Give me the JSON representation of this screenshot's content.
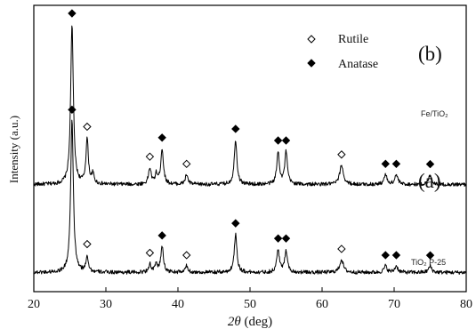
{
  "chart_data": {
    "type": "line",
    "xlabel": "2θ (deg)",
    "xlabel_parts": {
      "theta": "2θ",
      "unit": " (deg)"
    },
    "ylabel": "Intensity (a.u.)",
    "xlim": [
      20,
      80
    ],
    "xticks": [
      20,
      30,
      40,
      50,
      60,
      70,
      80
    ],
    "xtick_labels": [
      "20",
      "30",
      "40",
      "50",
      "60",
      "70",
      "80"
    ],
    "grid": false,
    "legend": {
      "placement": "top-center",
      "entries": [
        {
          "label": "Rutile",
          "marker": "open-diamond"
        },
        {
          "label": "Anatase",
          "marker": "filled-diamond"
        }
      ]
    },
    "series": [
      {
        "name": "Fe/TiO₂",
        "panel": "(b)",
        "baseline": 0.55,
        "noise": 0.012,
        "peaks": [
          {
            "x": 25.3,
            "h": 1.0,
            "w": 0.22,
            "phase": "anatase"
          },
          {
            "x": 27.4,
            "h": 0.28,
            "w": 0.2,
            "phase": "rutile"
          },
          {
            "x": 28.2,
            "h": 0.06,
            "w": 0.2,
            "phase": ""
          },
          {
            "x": 36.1,
            "h": 0.1,
            "w": 0.22,
            "phase": "rutile"
          },
          {
            "x": 37.0,
            "h": 0.06,
            "w": 0.2,
            "phase": ""
          },
          {
            "x": 37.8,
            "h": 0.22,
            "w": 0.22,
            "phase": "anatase"
          },
          {
            "x": 41.2,
            "h": 0.06,
            "w": 0.22,
            "phase": "rutile"
          },
          {
            "x": 48.0,
            "h": 0.28,
            "w": 0.22,
            "phase": "anatase"
          },
          {
            "x": 53.9,
            "h": 0.2,
            "w": 0.22,
            "phase": "anatase"
          },
          {
            "x": 55.0,
            "h": 0.2,
            "w": 0.22,
            "phase": "anatase"
          },
          {
            "x": 62.7,
            "h": 0.12,
            "w": 0.3,
            "phase": "rutile"
          },
          {
            "x": 68.8,
            "h": 0.06,
            "w": 0.25,
            "phase": "anatase"
          },
          {
            "x": 70.3,
            "h": 0.06,
            "w": 0.25,
            "phase": "anatase"
          },
          {
            "x": 75.0,
            "h": 0.06,
            "w": 0.25,
            "phase": "anatase"
          }
        ]
      },
      {
        "name": "TiO₂ P-25",
        "panel": "(a)",
        "baseline": 0.0,
        "noise": 0.012,
        "peaks": [
          {
            "x": 25.3,
            "h": 0.95,
            "w": 0.22,
            "phase": "anatase"
          },
          {
            "x": 27.4,
            "h": 0.1,
            "w": 0.2,
            "phase": "rutile"
          },
          {
            "x": 36.1,
            "h": 0.05,
            "w": 0.22,
            "phase": "rutile"
          },
          {
            "x": 37.0,
            "h": 0.05,
            "w": 0.2,
            "phase": ""
          },
          {
            "x": 37.8,
            "h": 0.16,
            "w": 0.22,
            "phase": "anatase"
          },
          {
            "x": 41.2,
            "h": 0.04,
            "w": 0.22,
            "phase": "rutile"
          },
          {
            "x": 48.0,
            "h": 0.24,
            "w": 0.22,
            "phase": "anatase"
          },
          {
            "x": 53.9,
            "h": 0.14,
            "w": 0.22,
            "phase": "anatase"
          },
          {
            "x": 55.0,
            "h": 0.14,
            "w": 0.22,
            "phase": "anatase"
          },
          {
            "x": 62.7,
            "h": 0.08,
            "w": 0.3,
            "phase": "rutile"
          },
          {
            "x": 68.8,
            "h": 0.04,
            "w": 0.25,
            "phase": "anatase"
          },
          {
            "x": 70.3,
            "h": 0.04,
            "w": 0.25,
            "phase": "anatase"
          },
          {
            "x": 75.0,
            "h": 0.04,
            "w": 0.25,
            "phase": "anatase"
          }
        ]
      }
    ]
  }
}
